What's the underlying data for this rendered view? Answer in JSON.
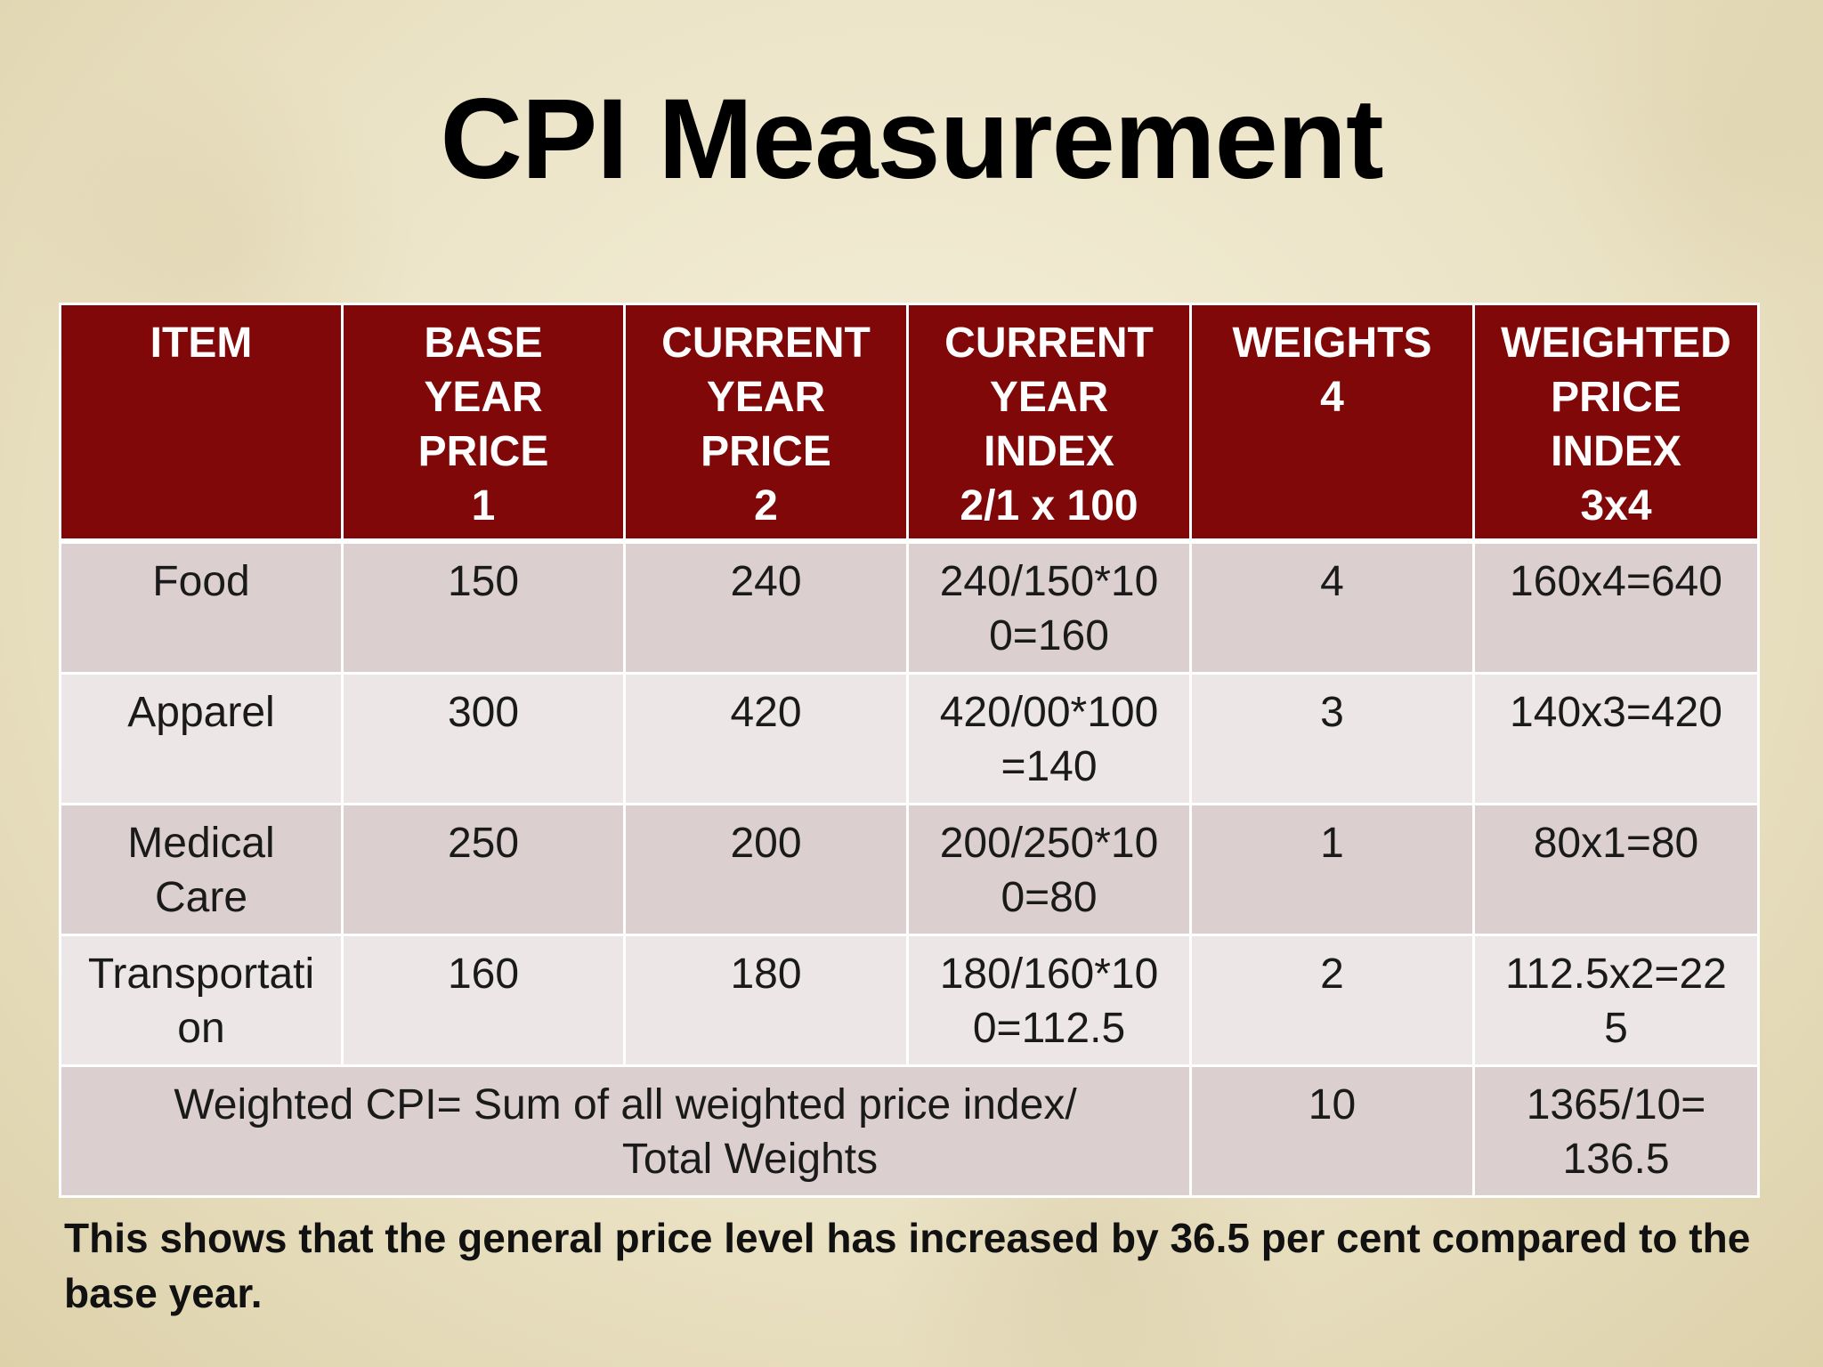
{
  "slide": {
    "title": "CPI Measurement",
    "conclusion": "This shows that the general price level has increased by 36.5 per cent compared to the base year."
  },
  "table": {
    "headers": [
      "ITEM",
      "BASE\nYEAR\nPRICE\n1",
      "CURRENT\nYEAR\nPRICE\n2",
      "CURRENT\nYEAR\nINDEX\n2/1 x 100",
      "WEIGHTS\n4",
      "WEIGHTED\nPRICE\nINDEX\n3x4"
    ],
    "rows": [
      {
        "item": "Food",
        "base_price": "150",
        "current_price": "240",
        "current_index": "240/150*10\n0=160",
        "weight": "4",
        "weighted_index": "160x4=640"
      },
      {
        "item": "Apparel",
        "base_price": "300",
        "current_price": "420",
        "current_index": "420/00*100\n=140",
        "weight": "3",
        "weighted_index": "140x3=420"
      },
      {
        "item": "Medical\nCare",
        "base_price": "250",
        "current_price": "200",
        "current_index": "200/250*10\n0=80",
        "weight": "1",
        "weighted_index": "80x1=80"
      },
      {
        "item": "Transportati\non",
        "base_price": "160",
        "current_price": "180",
        "current_index": "180/160*10\n0=112.5",
        "weight": "2",
        "weighted_index": "112.5x2=22\n5"
      }
    ],
    "total_row": {
      "label_line1": "Weighted CPI= Sum of all weighted price index/",
      "label_line2": "Total Weights",
      "total_weight": "10",
      "result": "1365/10=\n136.5"
    }
  }
}
